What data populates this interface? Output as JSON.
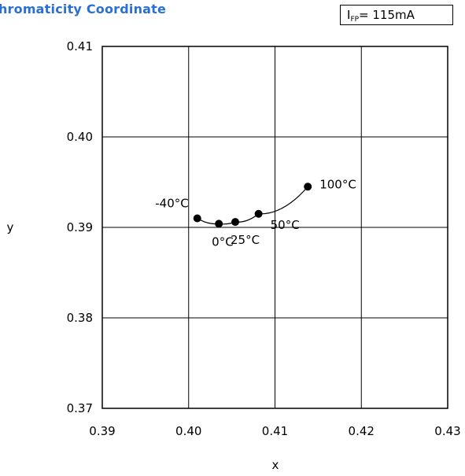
{
  "chart_data": {
    "type": "line",
    "title": "Chromaticity Coordinate",
    "condition": {
      "prefix": "I",
      "sub": "FP",
      "suffix": "= 115mA"
    },
    "xlabel": "x",
    "ylabel": "y",
    "xlim": [
      0.39,
      0.43
    ],
    "ylim": [
      0.37,
      0.41
    ],
    "xticks": [
      "0.39",
      "0.40",
      "0.41",
      "0.42",
      "0.43"
    ],
    "yticks": [
      "0.37",
      "0.38",
      "0.39",
      "0.40",
      "0.41"
    ],
    "grid": true,
    "series": [
      {
        "points": [
          {
            "label": "-40°C",
            "x": 0.401,
            "y": 0.391
          },
          {
            "label": "0°C",
            "x": 0.4035,
            "y": 0.3904
          },
          {
            "label": "25°C",
            "x": 0.4054,
            "y": 0.3906
          },
          {
            "label": "50°C",
            "x": 0.4081,
            "y": 0.3915
          },
          {
            "label": "100°C",
            "x": 0.4138,
            "y": 0.3945
          }
        ]
      }
    ]
  }
}
